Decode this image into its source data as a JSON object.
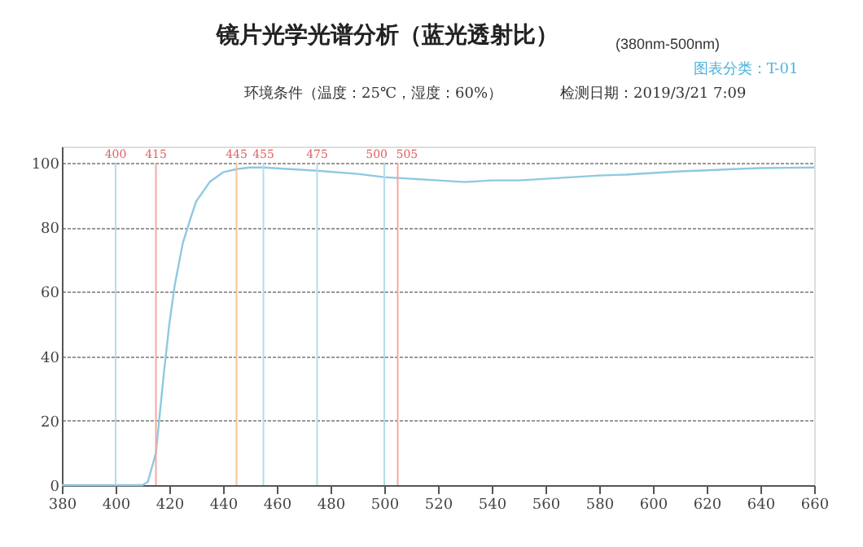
{
  "chart_data": {
    "type": "line",
    "title": "镜片光学光谱分析（蓝光透射比）",
    "subtitle": "(380nm-500nm)",
    "annotations": [
      "图表分类：T-01",
      "环境条件（温度：25℃，湿度：60%）",
      "检测日期：2019/3/21 7:09"
    ],
    "x": [
      380,
      390,
      400,
      405,
      410,
      412,
      415,
      418,
      420,
      422,
      425,
      428,
      430,
      435,
      440,
      445,
      450,
      455,
      465,
      475,
      490,
      500,
      510,
      520,
      530,
      540,
      550,
      560,
      570,
      580,
      590,
      600,
      610,
      620,
      630,
      640,
      650,
      660
    ],
    "series": [
      {
        "color": "#8ec9e0",
        "values": [
          0,
          0,
          0,
          0,
          0,
          1,
          10,
          35,
          50,
          62,
          75,
          83,
          88,
          94,
          97,
          98,
          98.5,
          98.5,
          98,
          97.5,
          96.5,
          95.5,
          95,
          94.5,
          94,
          94.5,
          94.5,
          95,
          95.5,
          96,
          96.3,
          96.8,
          97.3,
          97.6,
          98,
          98.3,
          98.4,
          98.5
        ]
      }
    ],
    "ref_lines": [
      {
        "axis": "x",
        "value": 400,
        "label": "400",
        "color": "#b5dcea"
      },
      {
        "axis": "x",
        "value": 415,
        "label": "415",
        "color": "#f4a8a0"
      },
      {
        "axis": "x",
        "value": 445,
        "label": "445",
        "color": "#f5c495"
      },
      {
        "axis": "x",
        "value": 455,
        "label": "455",
        "color": "#b5dcea"
      },
      {
        "axis": "x",
        "value": 475,
        "label": "475",
        "color": "#b5dcea"
      },
      {
        "axis": "x",
        "value": 500,
        "label": "500",
        "color": "#b5dcea"
      },
      {
        "axis": "x",
        "value": 505,
        "label": "505",
        "color": "#f4a8a0"
      }
    ],
    "xlim": [
      380,
      660
    ],
    "xticks": [
      380,
      400,
      420,
      440,
      460,
      480,
      500,
      520,
      540,
      560,
      580,
      600,
      620,
      640,
      660
    ],
    "ylim": [
      0,
      105
    ],
    "yticks": [
      0,
      20,
      40,
      60,
      80,
      100
    ],
    "grid": "y",
    "marker": "none",
    "line_style": "solid"
  }
}
